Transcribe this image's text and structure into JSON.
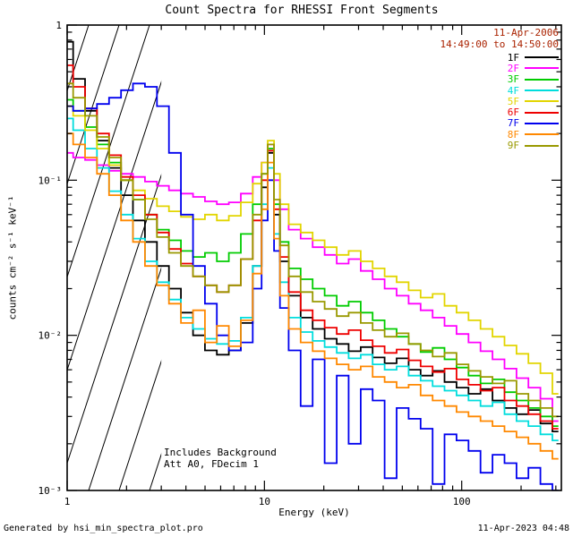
{
  "header": {
    "date": "11-Apr-2006",
    "time_range": "14:49:00 to 14:50:00"
  },
  "annotations": {
    "line1": "Includes Background",
    "line2": "Att A0, FDecim 1"
  },
  "footer": {
    "left": "Generated by hsi_min_spectra_plot.pro",
    "right": "11-Apr-2023 04:48"
  },
  "colors": {
    "date_text": "#aa2200",
    "axis": "#000000",
    "background": "#ffffff"
  },
  "chart_data": {
    "type": "line",
    "mode": "histogram-step",
    "title": "Count Spectra for RHESSI Front Segments",
    "xlabel": "Energy (keV)",
    "ylabel": "counts cm⁻² s⁻¹ keV⁻¹",
    "xscale": "log",
    "yscale": "log",
    "xlim": [
      1,
      320
    ],
    "ylim": [
      0.001,
      1
    ],
    "grid": false,
    "legend_position": "top-right",
    "hatch_region": {
      "xmin": 1,
      "xmax": 3
    },
    "x_ticks": [
      {
        "v": 1,
        "label": "1"
      },
      {
        "v": 10,
        "label": "10"
      },
      {
        "v": 100,
        "label": "100"
      }
    ],
    "y_ticks": [
      {
        "v": 1,
        "label": "1"
      },
      {
        "v": 0.1,
        "label": "10⁻¹"
      },
      {
        "v": 0.01,
        "label": "10⁻²"
      },
      {
        "v": 0.001,
        "label": "10⁻³"
      }
    ],
    "x": [
      1.0,
      1.15,
      1.32,
      1.52,
      1.75,
      2.01,
      2.31,
      2.66,
      3.06,
      3.52,
      4.05,
      4.66,
      5.35,
      6.16,
      7.08,
      8.14,
      9.36,
      10.0,
      10.8,
      11.6,
      12.4,
      14.2,
      16.4,
      18.8,
      21.7,
      24.9,
      28.7,
      33.0,
      37.9,
      43.6,
      50.2,
      57.7,
      66.4,
      76.3,
      87.8,
      101.0,
      116.1,
      133.6,
      153.6,
      176.7,
      203.2,
      233.7,
      268.8,
      309.1
    ],
    "series": [
      {
        "name": "1F",
        "color": "#000000",
        "values": [
          0.78,
          0.45,
          0.28,
          0.18,
          0.12,
          0.08,
          0.055,
          0.04,
          0.028,
          0.02,
          0.014,
          0.01,
          0.008,
          0.0075,
          0.008,
          0.012,
          0.028,
          0.09,
          0.15,
          0.06,
          0.03,
          0.018,
          0.013,
          0.011,
          0.0095,
          0.0088,
          0.0079,
          0.0084,
          0.0072,
          0.0066,
          0.0071,
          0.006,
          0.0055,
          0.0059,
          0.005,
          0.0046,
          0.0042,
          0.0045,
          0.0038,
          0.0034,
          0.0031,
          0.0033,
          0.0027,
          0.0024
        ]
      },
      {
        "name": "2F",
        "color": "#ff00ff",
        "values": [
          0.15,
          0.14,
          0.135,
          0.125,
          0.115,
          0.11,
          0.105,
          0.098,
          0.092,
          0.086,
          0.082,
          0.078,
          0.073,
          0.07,
          0.072,
          0.082,
          0.105,
          0.13,
          0.17,
          0.1,
          0.065,
          0.048,
          0.042,
          0.037,
          0.033,
          0.029,
          0.031,
          0.026,
          0.023,
          0.02,
          0.018,
          0.016,
          0.0145,
          0.013,
          0.0115,
          0.0102,
          0.009,
          0.0079,
          0.007,
          0.0061,
          0.0053,
          0.0046,
          0.0039,
          0.0028
        ]
      },
      {
        "name": "3F",
        "color": "#00cc00",
        "values": [
          0.33,
          0.28,
          0.22,
          0.17,
          0.13,
          0.1,
          0.075,
          0.06,
          0.048,
          0.041,
          0.035,
          0.032,
          0.034,
          0.03,
          0.034,
          0.045,
          0.07,
          0.11,
          0.16,
          0.07,
          0.04,
          0.027,
          0.023,
          0.02,
          0.018,
          0.0155,
          0.0165,
          0.014,
          0.0125,
          0.011,
          0.0098,
          0.0088,
          0.0078,
          0.0083,
          0.007,
          0.0062,
          0.0055,
          0.0049,
          0.0052,
          0.0043,
          0.0038,
          0.0034,
          0.003,
          0.0026
        ]
      },
      {
        "name": "4F",
        "color": "#00dddd",
        "values": [
          0.25,
          0.21,
          0.16,
          0.12,
          0.085,
          0.06,
          0.042,
          0.03,
          0.022,
          0.017,
          0.013,
          0.011,
          0.0095,
          0.0088,
          0.0092,
          0.013,
          0.028,
          0.07,
          0.12,
          0.045,
          0.022,
          0.013,
          0.0105,
          0.0092,
          0.0084,
          0.0077,
          0.0071,
          0.0075,
          0.0065,
          0.006,
          0.0063,
          0.0055,
          0.0051,
          0.0047,
          0.0044,
          0.0041,
          0.0038,
          0.0035,
          0.0037,
          0.0031,
          0.0028,
          0.0026,
          0.0023,
          0.0021
        ]
      },
      {
        "name": "5F",
        "color": "#e2d500",
        "values": [
          0.3,
          0.26,
          0.21,
          0.16,
          0.125,
          0.1,
          0.086,
          0.076,
          0.068,
          0.063,
          0.058,
          0.056,
          0.06,
          0.055,
          0.059,
          0.072,
          0.095,
          0.13,
          0.18,
          0.11,
          0.07,
          0.052,
          0.046,
          0.041,
          0.037,
          0.033,
          0.035,
          0.03,
          0.027,
          0.024,
          0.022,
          0.0195,
          0.0175,
          0.0185,
          0.0155,
          0.014,
          0.0125,
          0.011,
          0.0098,
          0.0086,
          0.0076,
          0.0066,
          0.0057,
          0.0042
        ]
      },
      {
        "name": "6F",
        "color": "#ee0000",
        "values": [
          0.55,
          0.4,
          0.29,
          0.2,
          0.145,
          0.105,
          0.08,
          0.06,
          0.046,
          0.036,
          0.029,
          0.024,
          0.021,
          0.019,
          0.021,
          0.031,
          0.055,
          0.1,
          0.155,
          0.065,
          0.032,
          0.019,
          0.0145,
          0.0125,
          0.0112,
          0.0102,
          0.0108,
          0.0093,
          0.0085,
          0.0077,
          0.0081,
          0.0069,
          0.0063,
          0.0058,
          0.0061,
          0.0052,
          0.0048,
          0.0044,
          0.0046,
          0.0038,
          0.0035,
          0.0031,
          0.0028,
          0.0025
        ]
      },
      {
        "name": "7F",
        "color": "#0000ee",
        "values": [
          0.3,
          0.28,
          0.29,
          0.31,
          0.34,
          0.38,
          0.42,
          0.4,
          0.3,
          0.15,
          0.06,
          0.028,
          0.016,
          0.01,
          0.008,
          0.009,
          0.02,
          0.055,
          0.1,
          0.035,
          0.015,
          0.008,
          0.0035,
          0.007,
          0.0015,
          0.0055,
          0.002,
          0.0045,
          0.0038,
          0.0012,
          0.0034,
          0.0029,
          0.0025,
          0.0011,
          0.0023,
          0.0021,
          0.0018,
          0.0013,
          0.0017,
          0.0015,
          0.0012,
          0.0014,
          0.0011,
          0.001
        ]
      },
      {
        "name": "8F",
        "color": "#ff8800",
        "values": [
          0.2,
          0.17,
          0.14,
          0.11,
          0.08,
          0.055,
          0.04,
          0.028,
          0.021,
          0.016,
          0.012,
          0.0145,
          0.009,
          0.0115,
          0.0085,
          0.0125,
          0.025,
          0.065,
          0.13,
          0.042,
          0.018,
          0.011,
          0.009,
          0.0079,
          0.0071,
          0.0065,
          0.006,
          0.0063,
          0.0054,
          0.005,
          0.0046,
          0.0048,
          0.0041,
          0.0038,
          0.0035,
          0.0032,
          0.003,
          0.0028,
          0.0026,
          0.0024,
          0.0022,
          0.002,
          0.0018,
          0.0016
        ]
      },
      {
        "name": "9F",
        "color": "#999900",
        "values": [
          0.42,
          0.34,
          0.26,
          0.19,
          0.14,
          0.1,
          0.075,
          0.056,
          0.043,
          0.034,
          0.028,
          0.024,
          0.021,
          0.019,
          0.021,
          0.031,
          0.06,
          0.11,
          0.17,
          0.075,
          0.038,
          0.024,
          0.019,
          0.0165,
          0.0148,
          0.0133,
          0.014,
          0.012,
          0.0108,
          0.0098,
          0.0103,
          0.0088,
          0.008,
          0.0073,
          0.0077,
          0.0065,
          0.0059,
          0.0054,
          0.0049,
          0.0051,
          0.0042,
          0.0038,
          0.0034,
          0.003
        ]
      }
    ]
  }
}
